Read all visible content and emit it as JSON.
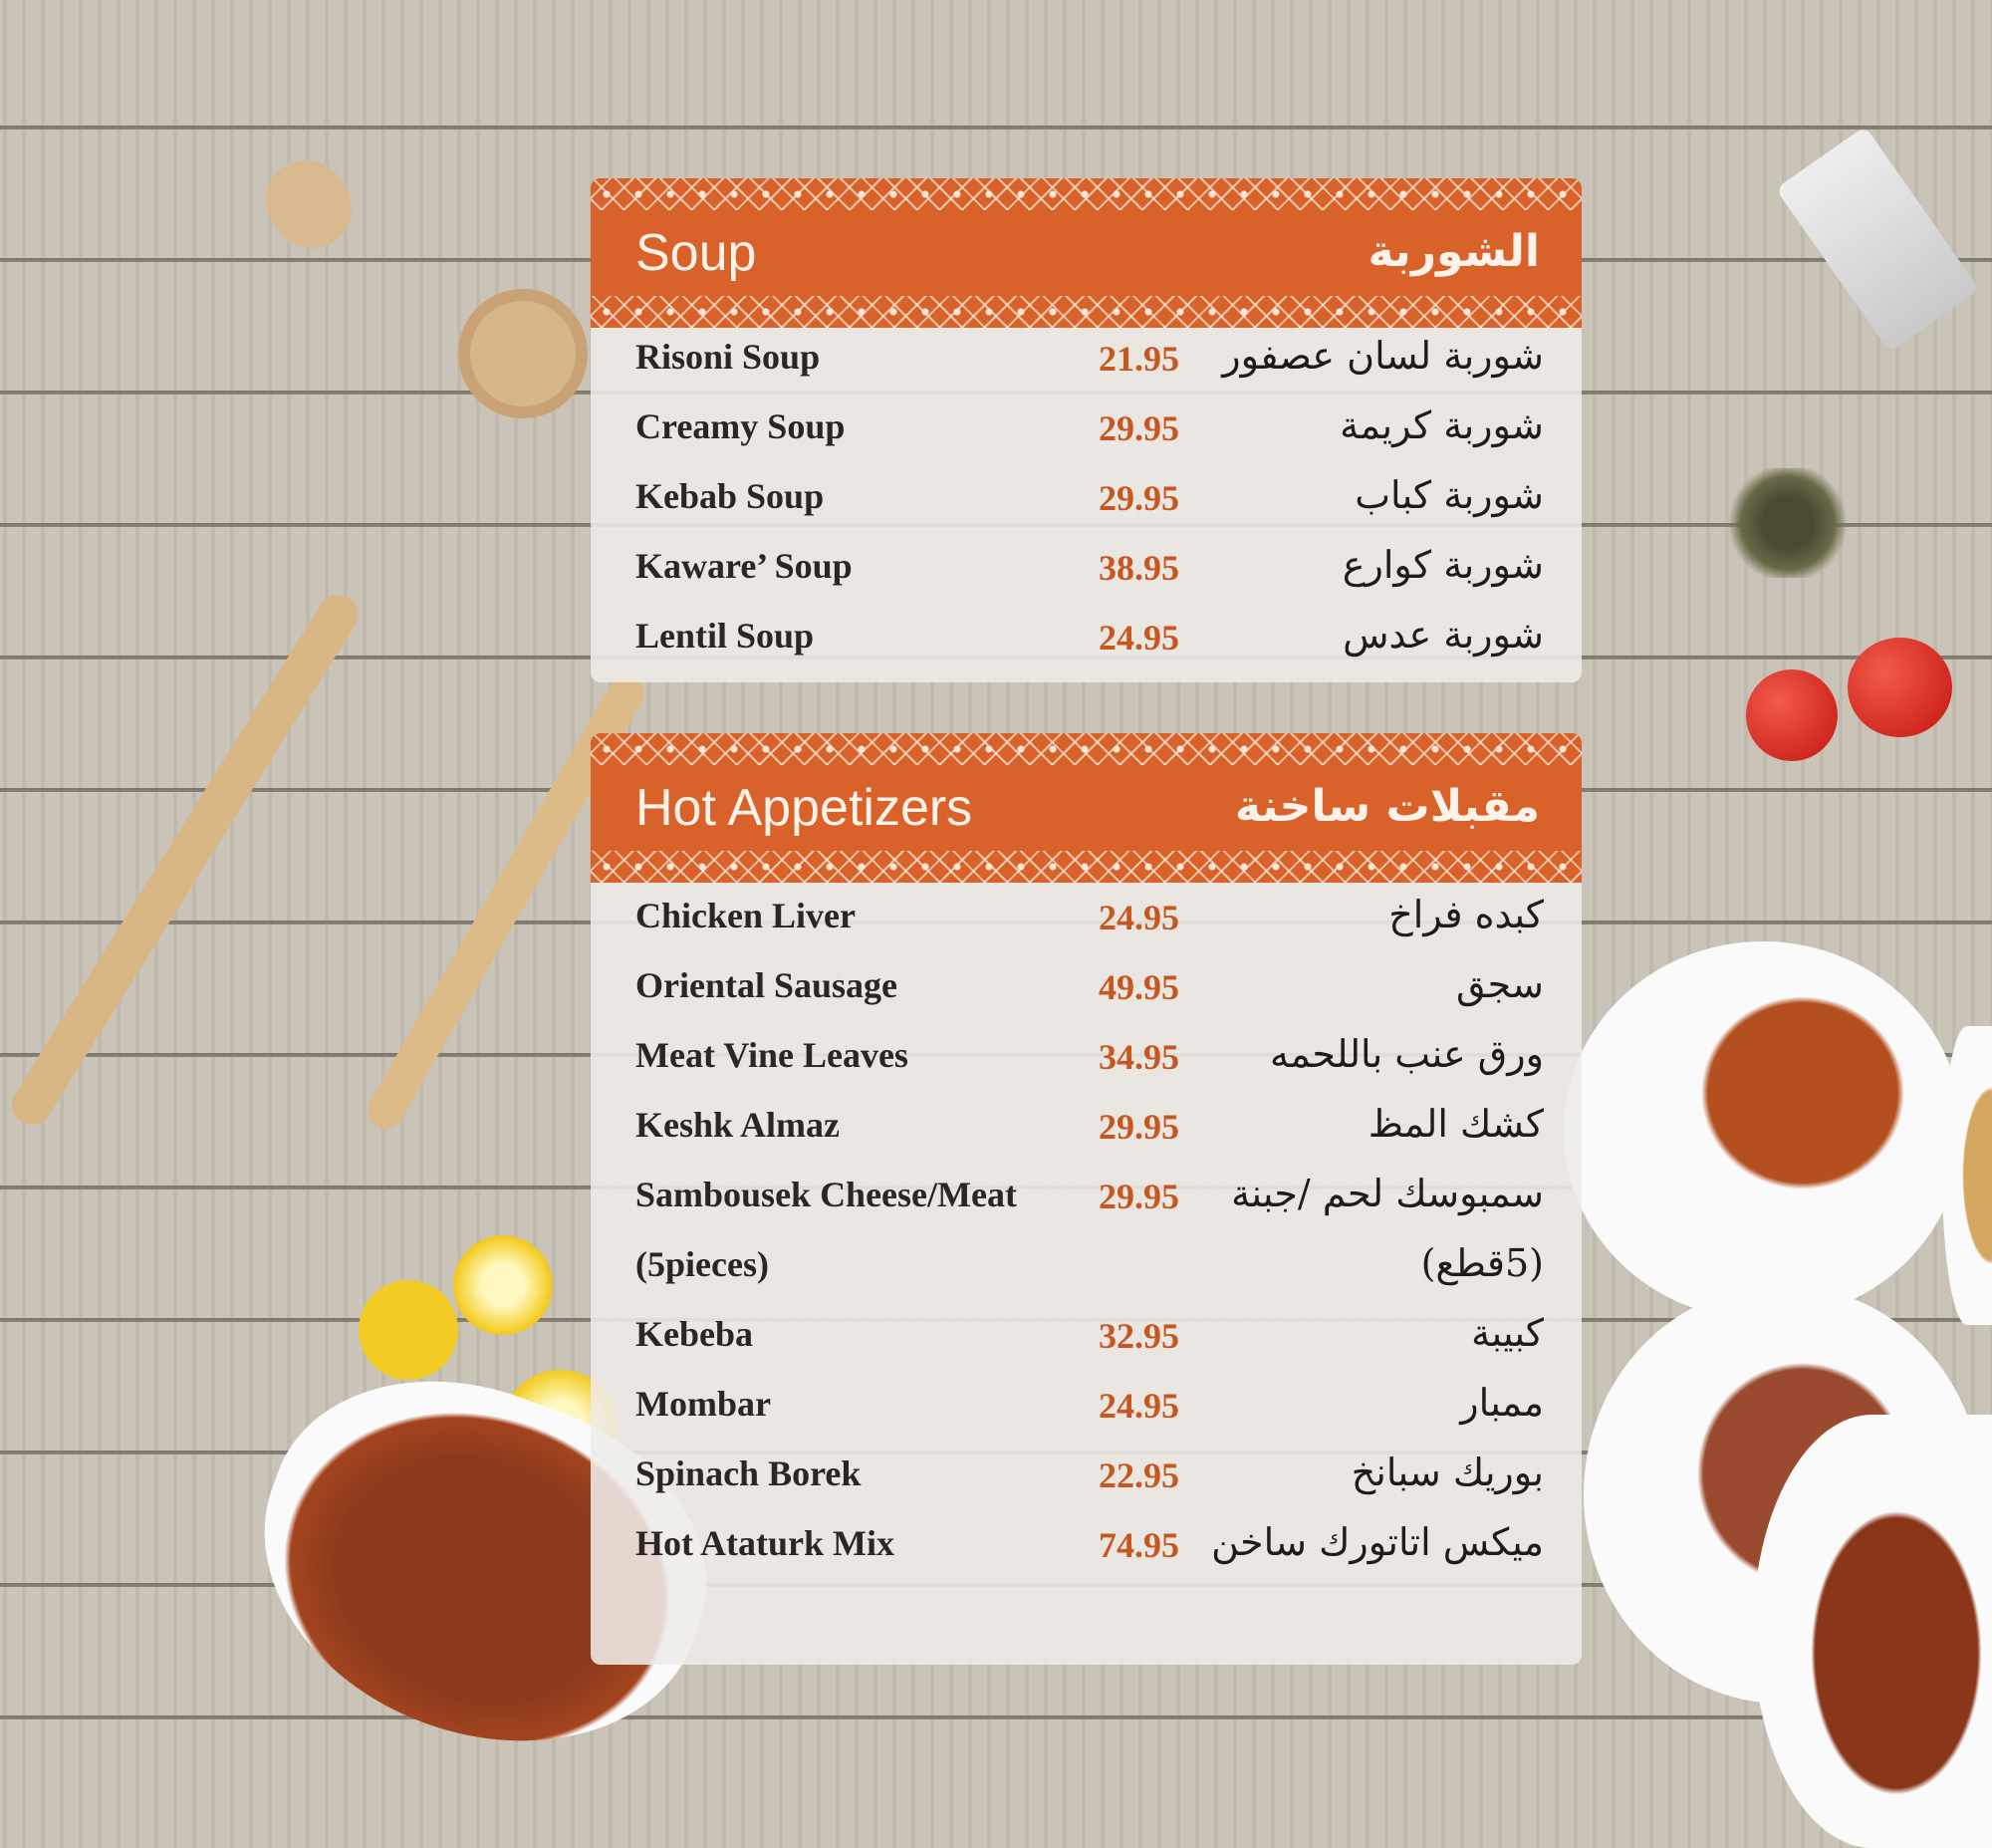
{
  "sections": [
    {
      "title_en": "Soup",
      "title_ar": "الشوربة",
      "items": [
        {
          "en": "Risoni Soup",
          "price": "21.95",
          "ar": "شوربة لسان عصفور"
        },
        {
          "en": "Creamy Soup",
          "price": "29.95",
          "ar": "شوربة كريمة"
        },
        {
          "en": "Kebab Soup",
          "price": "29.95",
          "ar": "شوربة كباب"
        },
        {
          "en": "Kaware’ Soup",
          "price": "38.95",
          "ar": "شوربة كوارع"
        },
        {
          "en": "Lentil Soup",
          "price": "24.95",
          "ar": "شوربة عدس"
        }
      ]
    },
    {
      "title_en": "Hot Appetizers",
      "title_ar": "مقبلات ساخنة",
      "items": [
        {
          "en": "Chicken Liver",
          "price": "24.95",
          "ar": "كبده فراخ"
        },
        {
          "en": "Oriental Sausage",
          "price": "49.95",
          "ar": "سجق"
        },
        {
          "en": "Meat Vine Leaves",
          "price": "34.95",
          "ar": "ورق عنب باللحمه"
        },
        {
          "en": "Keshk Almaz",
          "price": "29.95",
          "ar": "كشك المظ"
        },
        {
          "en": "Sambousek Cheese/Meat",
          "price": "29.95",
          "ar": "سمبوسك لحم /جبنة"
        },
        {
          "en": "(5pieces)",
          "price": "",
          "ar": "(5قطع)"
        },
        {
          "en": "Kebeba",
          "price": "32.95",
          "ar": "كبيبة"
        },
        {
          "en": "Mombar",
          "price": "24.95",
          "ar": "ممبار"
        },
        {
          "en": "Spinach Borek",
          "price": "22.95",
          "ar": "بوريك سبانخ"
        },
        {
          "en": "Hot Ataturk Mix",
          "price": "74.95",
          "ar": "ميكس اتاتورك ساخن"
        }
      ]
    }
  ],
  "colors": {
    "accent": "#d9612a",
    "price": "#c8561f",
    "background_wood": "#c8c1b5"
  },
  "decorations": [
    "wooden-scoop-icon",
    "wooden-spatula-icon",
    "wooden-spoon-icon",
    "salt-shaker-icon",
    "herbs-icon",
    "tomato-icon",
    "lemon-icon",
    "sausage-dish-icon",
    "kebeba-plate-icon",
    "kofta-plate-icon",
    "sambousek-plate-icon"
  ]
}
